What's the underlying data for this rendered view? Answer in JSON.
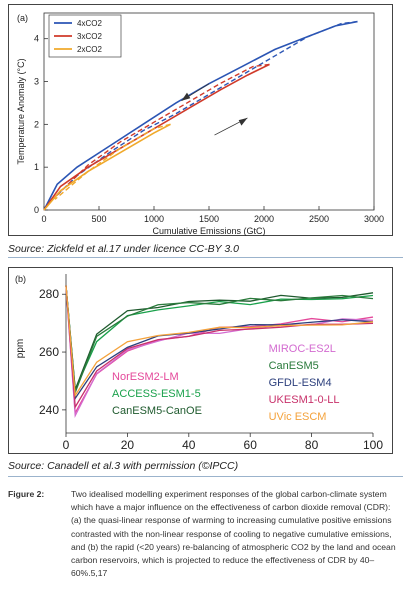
{
  "chart_data": [
    {
      "type": "line",
      "panel_label": "(a)",
      "xlabel": "Cumulative Emissions (GtC)",
      "ylabel": "Temperature Anomaly (°C)",
      "xlim": [
        0,
        3000
      ],
      "ylim": [
        0,
        4.6
      ],
      "xticks": [
        0,
        500,
        1000,
        1500,
        2000,
        2500,
        3000
      ],
      "yticks": [
        0,
        1,
        2,
        3,
        4
      ],
      "grid": false,
      "legend_position": "top-left",
      "series": [
        {
          "name": "4xCO2",
          "color": "#2b55b4",
          "x": [
            0,
            120,
            300,
            600,
            900,
            1200,
            1500,
            1800,
            2100,
            2400,
            2650,
            2850
          ],
          "y": [
            0,
            0.6,
            1.0,
            1.5,
            2.0,
            2.5,
            2.95,
            3.35,
            3.75,
            4.05,
            4.3,
            4.4
          ],
          "return_x": [
            2850,
            2700,
            2400,
            2100,
            1800,
            1500,
            1200,
            900,
            600,
            300,
            100
          ],
          "return_y": [
            4.4,
            4.35,
            4.05,
            3.6,
            3.15,
            2.7,
            2.25,
            1.85,
            1.35,
            0.8,
            0.3
          ]
        },
        {
          "name": "3xCO2",
          "color": "#d03a2a",
          "x": [
            0,
            150,
            400,
            700,
            1000,
            1300,
            1600,
            1850,
            2050
          ],
          "y": [
            0,
            0.55,
            1.0,
            1.45,
            1.9,
            2.35,
            2.8,
            3.15,
            3.4
          ],
          "return_x": [
            2050,
            1900,
            1600,
            1300,
            1000,
            700,
            400,
            100
          ],
          "return_y": [
            3.4,
            3.35,
            2.95,
            2.5,
            2.05,
            1.6,
            1.05,
            0.3
          ]
        },
        {
          "name": "2xCO2",
          "color": "#f0a92b",
          "x": [
            0,
            150,
            400,
            700,
            1000,
            1150
          ],
          "y": [
            0,
            0.45,
            0.9,
            1.35,
            1.8,
            2.0
          ],
          "return_x": [
            1150,
            1000,
            700,
            400,
            100
          ],
          "return_y": [
            2.0,
            1.9,
            1.45,
            0.9,
            0.25
          ]
        }
      ]
    },
    {
      "type": "line",
      "panel_label": "(b)",
      "xlabel": "",
      "ylabel": "ppm",
      "xlim": [
        0,
        100
      ],
      "ylim": [
        232,
        287
      ],
      "xticks": [
        0,
        20,
        40,
        60,
        80,
        100
      ],
      "yticks": [
        240,
        260,
        280
      ],
      "grid": false,
      "series": [
        {
          "name": "NorESM2-LM",
          "color": "#e4489a",
          "x": [
            0,
            3,
            10,
            20,
            30,
            40,
            50,
            60,
            70,
            80,
            90,
            100
          ],
          "y": [
            283,
            239,
            253,
            260,
            264,
            266,
            268,
            269,
            270,
            271,
            271,
            272
          ]
        },
        {
          "name": "ACCESS-ESM1-5",
          "color": "#1aa14b",
          "x": [
            0,
            3,
            10,
            20,
            30,
            40,
            50,
            60,
            70,
            80,
            90,
            100
          ],
          "y": [
            283,
            247,
            264,
            272,
            275,
            276,
            277,
            277,
            278,
            278,
            279,
            279
          ]
        },
        {
          "name": "CanESM5-CanOE",
          "color": "#1f5a2e",
          "x": [
            0,
            3,
            10,
            20,
            30,
            40,
            50,
            60,
            70,
            80,
            90,
            100
          ],
          "y": [
            283,
            247,
            266,
            274,
            276,
            277,
            278,
            278,
            279,
            279,
            279,
            280
          ]
        },
        {
          "name": "MIROC-ES2L",
          "color": "#d36bd0",
          "x": [
            0,
            3,
            10,
            20,
            30,
            40,
            50,
            60,
            70,
            80,
            90,
            100
          ],
          "y": [
            283,
            238,
            252,
            261,
            264,
            266,
            267,
            268,
            269,
            270,
            271,
            271
          ]
        },
        {
          "name": "CanESM5",
          "color": "#2a7a3b",
          "x": [
            0,
            3,
            10,
            20,
            30,
            40,
            50,
            60,
            70,
            80,
            90,
            100
          ],
          "y": [
            283,
            246,
            265,
            273,
            276,
            277,
            277,
            278,
            278,
            279,
            279,
            279
          ]
        },
        {
          "name": "GFDL-ESM4",
          "color": "#2c3f7c",
          "x": [
            0,
            3,
            10,
            20,
            30,
            40,
            50,
            60,
            70,
            80,
            90,
            100
          ],
          "y": [
            283,
            244,
            255,
            262,
            265,
            267,
            268,
            269,
            270,
            270,
            271,
            271
          ]
        },
        {
          "name": "UKESM1-0-LL",
          "color": "#c8316a",
          "x": [
            0,
            3,
            10,
            20,
            30,
            40,
            50,
            60,
            70,
            80,
            90,
            100
          ],
          "y": [
            283,
            241,
            254,
            261,
            264,
            266,
            267,
            268,
            269,
            269,
            270,
            270
          ]
        },
        {
          "name": "UVic ESCM",
          "color": "#f4a23b",
          "x": [
            0,
            3,
            10,
            20,
            30,
            40,
            50,
            60,
            70,
            80,
            90,
            100
          ],
          "y": [
            283,
            245,
            257,
            263,
            266,
            267,
            268,
            269,
            269,
            269,
            270,
            270
          ]
        }
      ]
    }
  ],
  "sources": {
    "a": "Source: Zickfeld et al.17 under licence CC-BY 3.0",
    "b": "Source: Canadell et al.3 with permission (©IPCC)"
  },
  "caption": {
    "label": "Figure 2:",
    "text": "Two idealised modelling experiment responses of the global carbon-climate system which have a major influence on the effectiveness of carbon dioxide removal (CDR): (a) the quasi-linear response of warming to increasing cumulative positive emissions contrasted with the non-linear response of cooling to negative cumulative emissions, and (b) the rapid (<20 years) re-balancing of atmospheric CO2 by the land and ocean carbon reservoirs, which is projected to reduce the effectiveness of CDR by 40–60%.5,17"
  }
}
